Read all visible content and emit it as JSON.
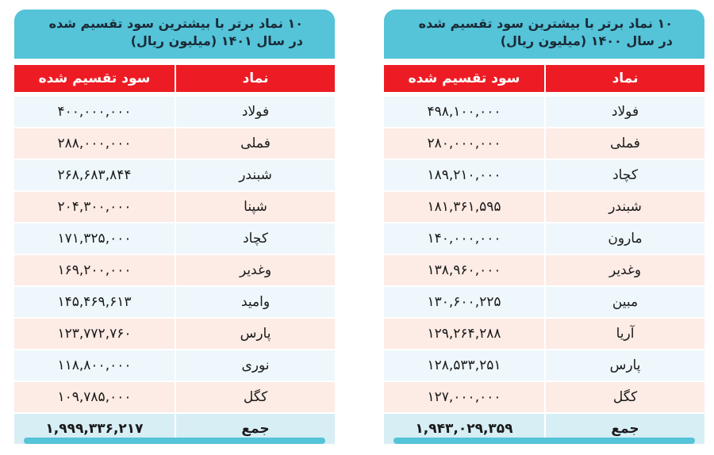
{
  "tables": [
    {
      "title_line1": "۱۰ نماد برتر با بیشترین سود تقسیم شده",
      "title_line2": "در سال ۱۴۰۱ (میلیون ریال)",
      "col_value": "سود تقسیم شده",
      "col_symbol": "نماد",
      "rows": [
        {
          "symbol": "فولاد",
          "value": "۴۰۰,۰۰۰,۰۰۰"
        },
        {
          "symbol": "فملی",
          "value": "۲۸۸,۰۰۰,۰۰۰"
        },
        {
          "symbol": "شبندر",
          "value": "۲۶۸,۶۸۳,۸۴۴"
        },
        {
          "symbol": "شپنا",
          "value": "۲۰۴,۳۰۰,۰۰۰"
        },
        {
          "symbol": "کچاد",
          "value": "۱۷۱,۳۲۵,۰۰۰"
        },
        {
          "symbol": "وغدیر",
          "value": "۱۶۹,۲۰۰,۰۰۰"
        },
        {
          "symbol": "وامید",
          "value": "۱۴۵,۴۶۹,۶۱۳"
        },
        {
          "symbol": "پارس",
          "value": "۱۲۳,۷۷۲,۷۶۰"
        },
        {
          "symbol": "نوری",
          "value": "۱۱۸,۸۰۰,۰۰۰"
        },
        {
          "symbol": "کگل",
          "value": "۱۰۹,۷۸۵,۰۰۰"
        }
      ],
      "total_label": "جمع",
      "total_value": "۱,۹۹۹,۳۳۶,۲۱۷"
    },
    {
      "title_line1": "۱۰ نماد برتر با بیشترین سود تقسیم شده",
      "title_line2": "در سال ۱۴۰۰ (میلیون ریال)",
      "col_value": "سود تقسیم شده",
      "col_symbol": "نماد",
      "rows": [
        {
          "symbol": "فولاد",
          "value": "۴۹۸,۱۰۰,۰۰۰"
        },
        {
          "symbol": "فملی",
          "value": "۲۸۰,۰۰۰,۰۰۰"
        },
        {
          "symbol": "کچاد",
          "value": "۱۸۹,۲۱۰,۰۰۰"
        },
        {
          "symbol": "شبندر",
          "value": "۱۸۱,۳۶۱,۵۹۵"
        },
        {
          "symbol": "مارون",
          "value": "۱۴۰,۰۰۰,۰۰۰"
        },
        {
          "symbol": "وغدیر",
          "value": "۱۳۸,۹۶۰,۰۰۰"
        },
        {
          "symbol": "مبین",
          "value": "۱۳۰,۶۰۰,۲۲۵"
        },
        {
          "symbol": "آریا",
          "value": "۱۲۹,۲۶۴,۲۸۸"
        },
        {
          "symbol": "پارس",
          "value": "۱۲۸,۵۳۳,۲۵۱"
        },
        {
          "symbol": "کگل",
          "value": "۱۲۷,۰۰۰,۰۰۰"
        }
      ],
      "total_label": "جمع",
      "total_value": "۱,۹۴۳,۰۲۹,۳۵۹"
    }
  ],
  "colors": {
    "title_bg": "#55c3d8",
    "header_bg": "#ed1c24",
    "row_blue": "#eef7fb",
    "row_pink": "#fdebe5",
    "total_bg": "#d7eef5"
  }
}
